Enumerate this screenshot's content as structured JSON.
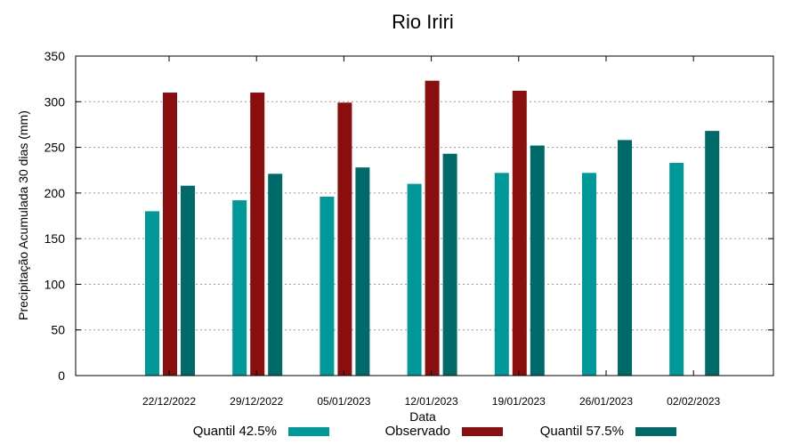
{
  "chart_data": {
    "type": "bar",
    "title": "Rio Iriri",
    "xlabel": "Data",
    "ylabel": "Precipitação Acumulada 30 dias (mm)",
    "ylim": [
      0,
      350
    ],
    "yticks": [
      0,
      50,
      100,
      150,
      200,
      250,
      300,
      350
    ],
    "grid": true,
    "legend": "bottom",
    "categories": [
      "22/12/2022",
      "29/12/2022",
      "05/01/2023",
      "12/01/2023",
      "19/01/2023",
      "26/01/2023",
      "02/02/2023"
    ],
    "series": [
      {
        "name": "Quantil 42.5%",
        "color": "#009999",
        "values": [
          180,
          192,
          196,
          210,
          222,
          222,
          233
        ]
      },
      {
        "name": "Observado",
        "color": "#8b0e0e",
        "values": [
          310,
          310,
          299,
          323,
          312,
          null,
          null
        ]
      },
      {
        "name": "Quantil 57.5%",
        "color": "#006a6a",
        "values": [
          208,
          221,
          228,
          243,
          252,
          258,
          268
        ]
      }
    ]
  }
}
